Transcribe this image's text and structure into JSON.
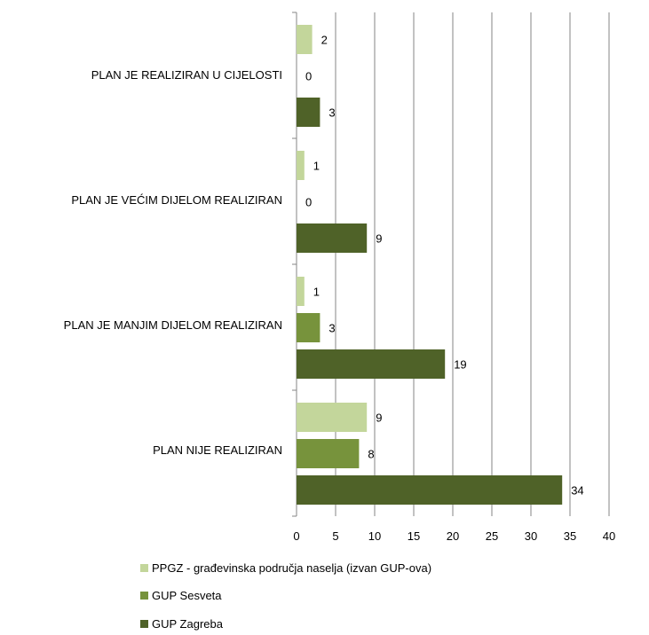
{
  "chart_data": {
    "type": "bar",
    "orientation": "horizontal",
    "categories": [
      "PLAN JE REALIZIRAN U CIJELOSTI",
      "PLAN JE VEĆIM DIJELOM REALIZIRAN",
      "PLAN JE MANJIM DIJELOM REALIZIRAN",
      "PLAN NIJE REALIZIRAN"
    ],
    "category_labels": [
      "PLAN JE REALIZIRAN U CIJELOSTI",
      "PLAN JE VEĆIM DIJELOM REALIZIRAN",
      "PLAN JE MANJIM DIJELOM REALIZIRAN",
      "PLAN NIJE REALIZIRAN"
    ],
    "series": [
      {
        "name": "PPGZ - građevinska područja naselja (izvan GUP-ova)",
        "color": "#c3d69b",
        "values": [
          2,
          1,
          1,
          9
        ]
      },
      {
        "name": "GUP Sesveta",
        "color": "#77933c",
        "values": [
          0,
          0,
          3,
          8
        ]
      },
      {
        "name": "GUP Zagreba",
        "color": "#4f6228",
        "values": [
          3,
          9,
          19,
          34
        ]
      }
    ],
    "xlim": [
      0,
      40
    ],
    "xticks": [
      0,
      5,
      10,
      15,
      20,
      25,
      30,
      35,
      40
    ],
    "xlabel": "",
    "ylabel": "",
    "title": "",
    "data_labels": true,
    "grid": "vertical",
    "legend_position": "bottom",
    "legend": [
      "PPGZ - građevinska područja naselja (izvan GUP-ova)",
      "GUP Sesveta",
      "GUP Zagreba"
    ]
  }
}
